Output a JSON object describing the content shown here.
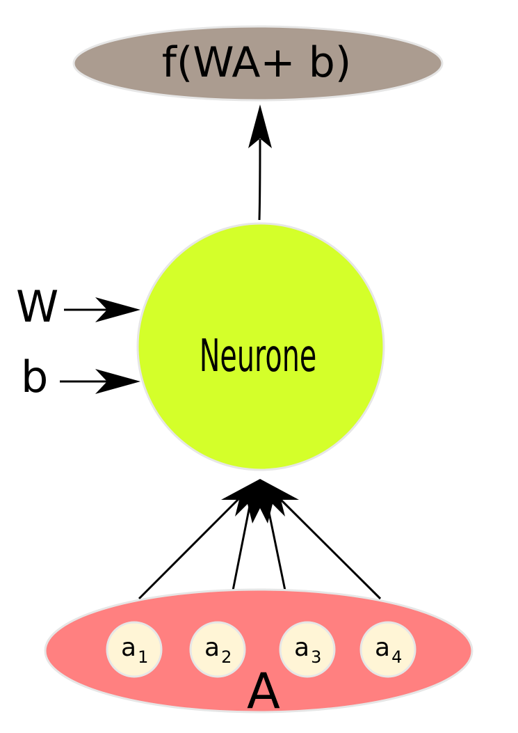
{
  "output": {
    "label": "f(WA+ b)",
    "color": "#ab9c90"
  },
  "neuron": {
    "label": "Neurone",
    "color": "#d4ff2a"
  },
  "params": {
    "weight_label": "W",
    "bias_label": "b"
  },
  "input_layer": {
    "label": "A",
    "color": "#ff8080",
    "node_color": "#fff5d6",
    "nodes": [
      {
        "base": "a",
        "sub": "1"
      },
      {
        "base": "a",
        "sub": "2"
      },
      {
        "base": "a",
        "sub": "3"
      },
      {
        "base": "a",
        "sub": "4"
      }
    ]
  }
}
